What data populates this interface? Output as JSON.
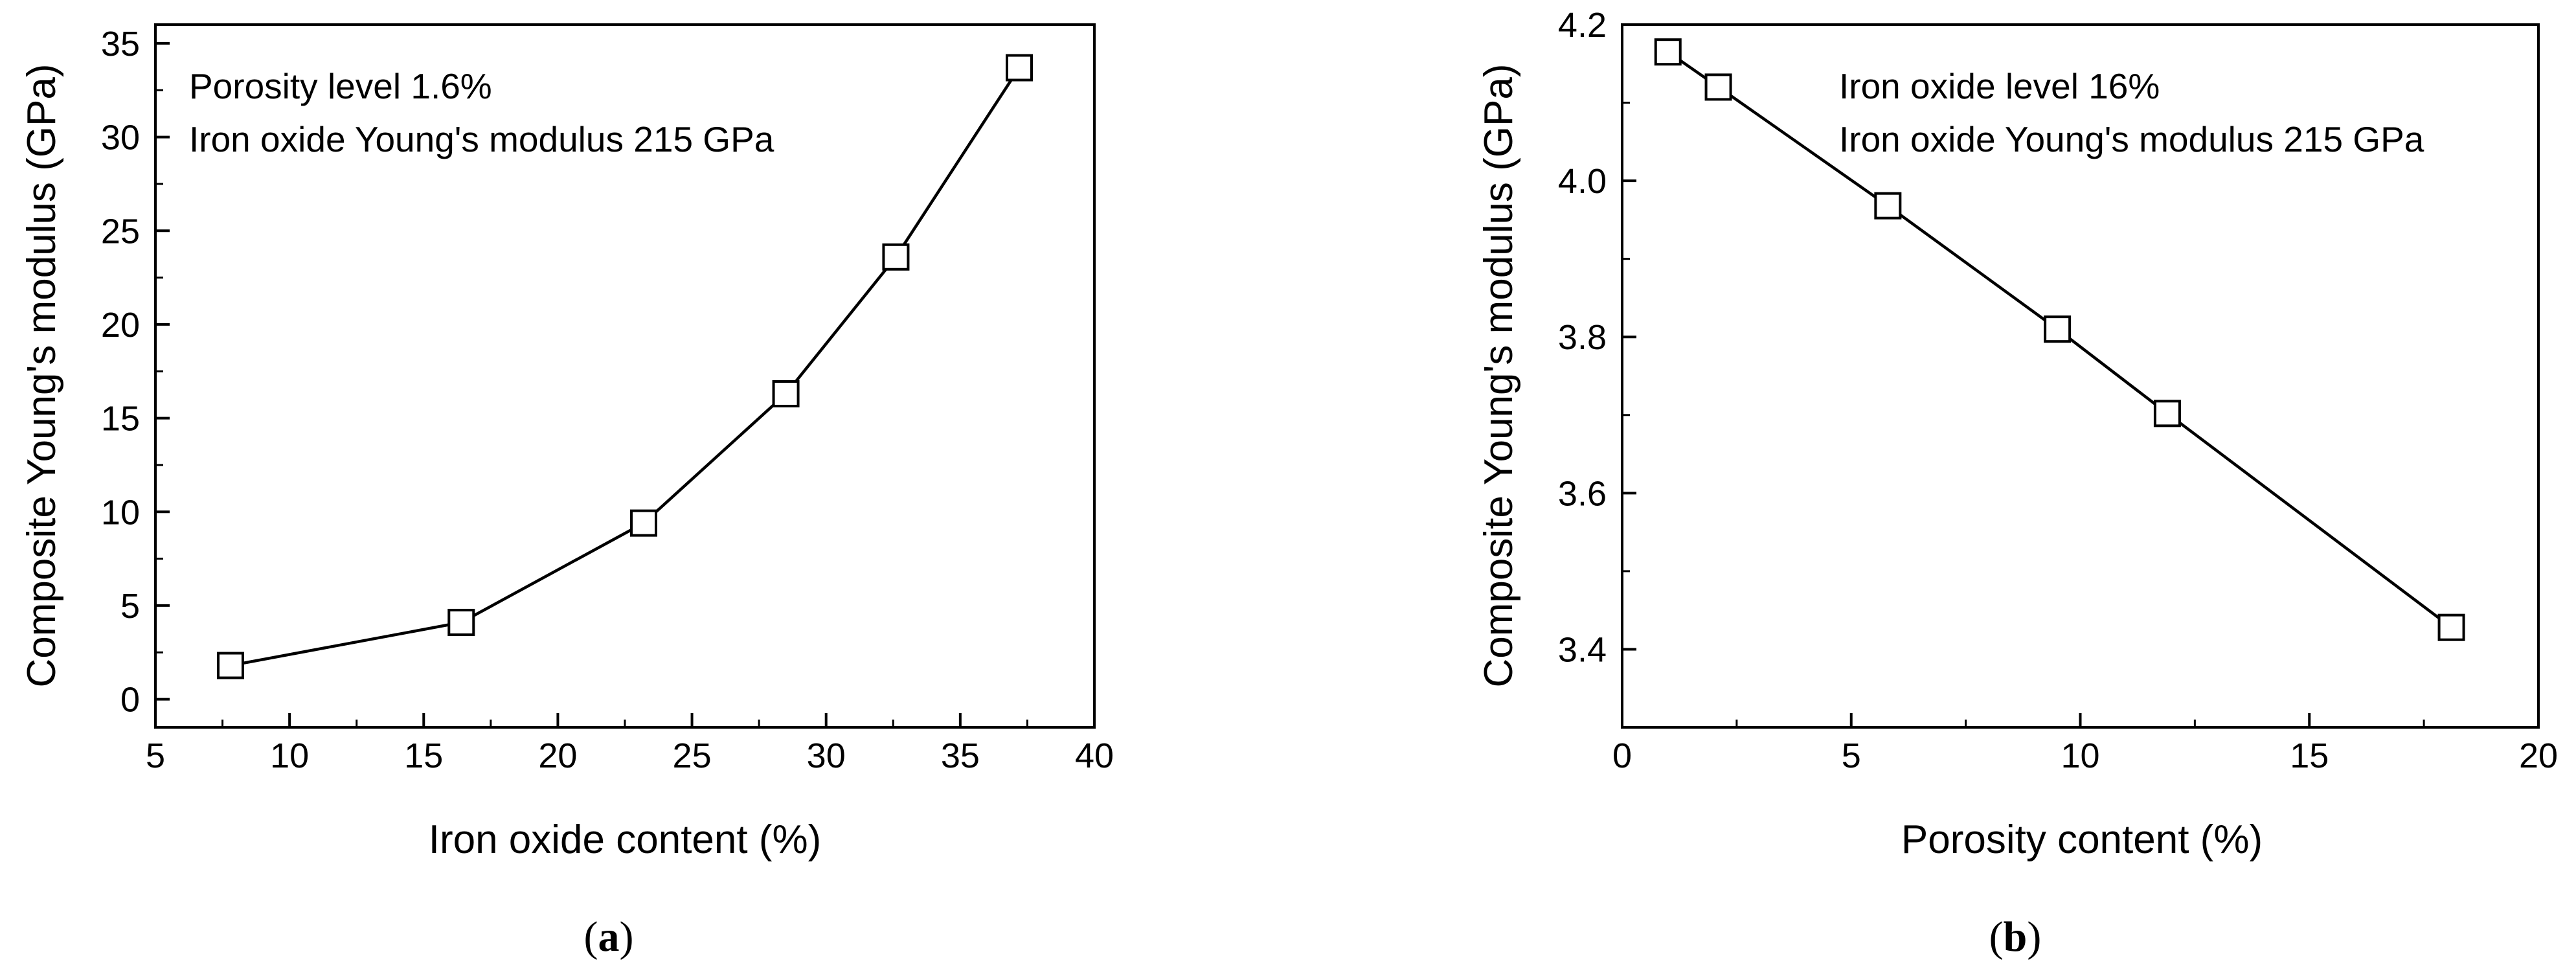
{
  "chart_data": [
    {
      "type": "line",
      "panel_letter": "a",
      "panel_open": "(",
      "panel_close": ")",
      "title": "",
      "xlabel": "Iron oxide content (%)",
      "ylabel": "Composite Young's modulus (GPa)",
      "xlim": [
        5,
        40
      ],
      "ylim": [
        -1.5,
        36
      ],
      "xticks": [
        5,
        10,
        15,
        20,
        25,
        30,
        35,
        40
      ],
      "yticks": [
        0,
        5,
        10,
        15,
        20,
        25,
        30,
        35
      ],
      "xtick_labels": [
        "5",
        "10",
        "15",
        "20",
        "25",
        "30",
        "35",
        "40"
      ],
      "ytick_labels": [
        "0",
        "5",
        "10",
        "15",
        "20",
        "25",
        "30",
        "35"
      ],
      "marker": "open-square",
      "annotations": [
        "Porosity level 1.6%",
        "Iron oxide Young's modulus 215 GPa"
      ],
      "series": [
        {
          "name": "",
          "x": [
            7.8,
            16.4,
            23.2,
            28.5,
            32.6,
            37.2
          ],
          "y": [
            1.8,
            4.1,
            9.4,
            16.3,
            23.6,
            33.7
          ]
        }
      ]
    },
    {
      "type": "line",
      "panel_letter": "b",
      "panel_open": "(",
      "panel_close": ")",
      "title": "",
      "xlabel": "Porosity content (%)",
      "ylabel": "Composite Young's modulus (GPa)",
      "xlim": [
        0,
        20
      ],
      "ylim": [
        3.3,
        4.2
      ],
      "xticks": [
        0,
        5,
        10,
        15,
        20
      ],
      "yticks": [
        3.4,
        3.6,
        3.8,
        4.0,
        4.2
      ],
      "xtick_labels": [
        "0",
        "5",
        "10",
        "15",
        "20"
      ],
      "ytick_labels": [
        "3.4",
        "3.6",
        "3.8",
        "4.0",
        "4.2"
      ],
      "marker": "open-square",
      "annotations": [
        "Iron oxide level 16%",
        "Iron oxide Young's modulus 215 GPa"
      ],
      "series": [
        {
          "name": "",
          "x": [
            1.0,
            2.1,
            5.8,
            9.5,
            11.9,
            18.1
          ],
          "y": [
            4.165,
            4.12,
            3.968,
            3.81,
            3.702,
            3.428
          ]
        }
      ]
    }
  ]
}
